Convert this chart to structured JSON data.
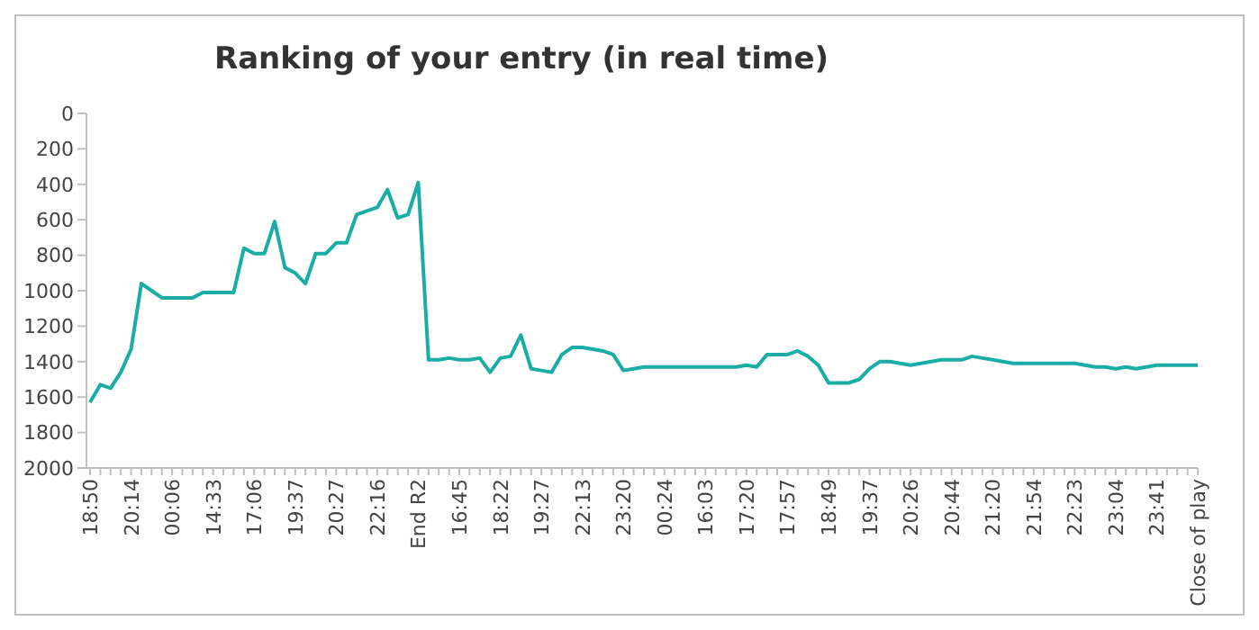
{
  "chart_data": {
    "type": "line",
    "title": "Ranking of your entry (in real time)",
    "categories": [
      "18:50",
      null,
      null,
      null,
      "20:14",
      null,
      null,
      null,
      "00:06",
      null,
      null,
      null,
      "14:33",
      null,
      null,
      null,
      "17:06",
      null,
      null,
      null,
      "19:37",
      null,
      null,
      null,
      "20:27",
      null,
      null,
      null,
      "22:16",
      null,
      null,
      null,
      "End R2",
      null,
      null,
      null,
      "16:45",
      null,
      null,
      null,
      "18:22",
      null,
      null,
      null,
      "19:27",
      null,
      null,
      null,
      "22:13",
      null,
      null,
      null,
      "23:20",
      null,
      null,
      null,
      "00:24",
      null,
      null,
      null,
      "16:03",
      null,
      null,
      null,
      "17:20",
      null,
      null,
      null,
      "17:57",
      null,
      null,
      null,
      "18:49",
      null,
      null,
      null,
      "19:37",
      null,
      null,
      null,
      "20:26",
      null,
      null,
      null,
      "20:44",
      null,
      null,
      null,
      "21:20",
      null,
      null,
      null,
      "21:54",
      null,
      null,
      null,
      "22:23",
      null,
      null,
      null,
      "23:04",
      null,
      null,
      null,
      "23:41",
      null,
      null,
      null,
      "Close of play"
    ],
    "series": [
      {
        "color": "#1aada6",
        "values": [
          1630,
          1530,
          1550,
          1460,
          1330,
          960,
          1000,
          1040,
          1040,
          1040,
          1040,
          1010,
          1010,
          1010,
          1010,
          760,
          790,
          790,
          610,
          870,
          900,
          960,
          790,
          790,
          730,
          730,
          570,
          550,
          530,
          430,
          590,
          570,
          390,
          1390,
          1390,
          1380,
          1390,
          1390,
          1380,
          1460,
          1380,
          1370,
          1250,
          1440,
          1450,
          1460,
          1360,
          1320,
          1320,
          1330,
          1340,
          1360,
          1450,
          1440,
          1430,
          1430,
          1430,
          1430,
          1430,
          1430,
          1430,
          1430,
          1430,
          1430,
          1420,
          1430,
          1360,
          1360,
          1360,
          1340,
          1370,
          1420,
          1520,
          1520,
          1520,
          1500,
          1440,
          1400,
          1400,
          1410,
          1420,
          1410,
          1400,
          1390,
          1390,
          1390,
          1370,
          1380,
          1390,
          1400,
          1410,
          1410,
          1410,
          1410,
          1410,
          1410,
          1410,
          1420,
          1430,
          1430,
          1440,
          1430,
          1440,
          1430,
          1420,
          1420,
          1420,
          1420,
          1420
        ]
      }
    ],
    "ylim": [
      2000,
      0
    ],
    "yticks": [
      0,
      200,
      400,
      600,
      800,
      1000,
      1200,
      1400,
      1600,
      1800,
      2000
    ],
    "grid": false,
    "marker": "none",
    "line_style": "solid"
  }
}
